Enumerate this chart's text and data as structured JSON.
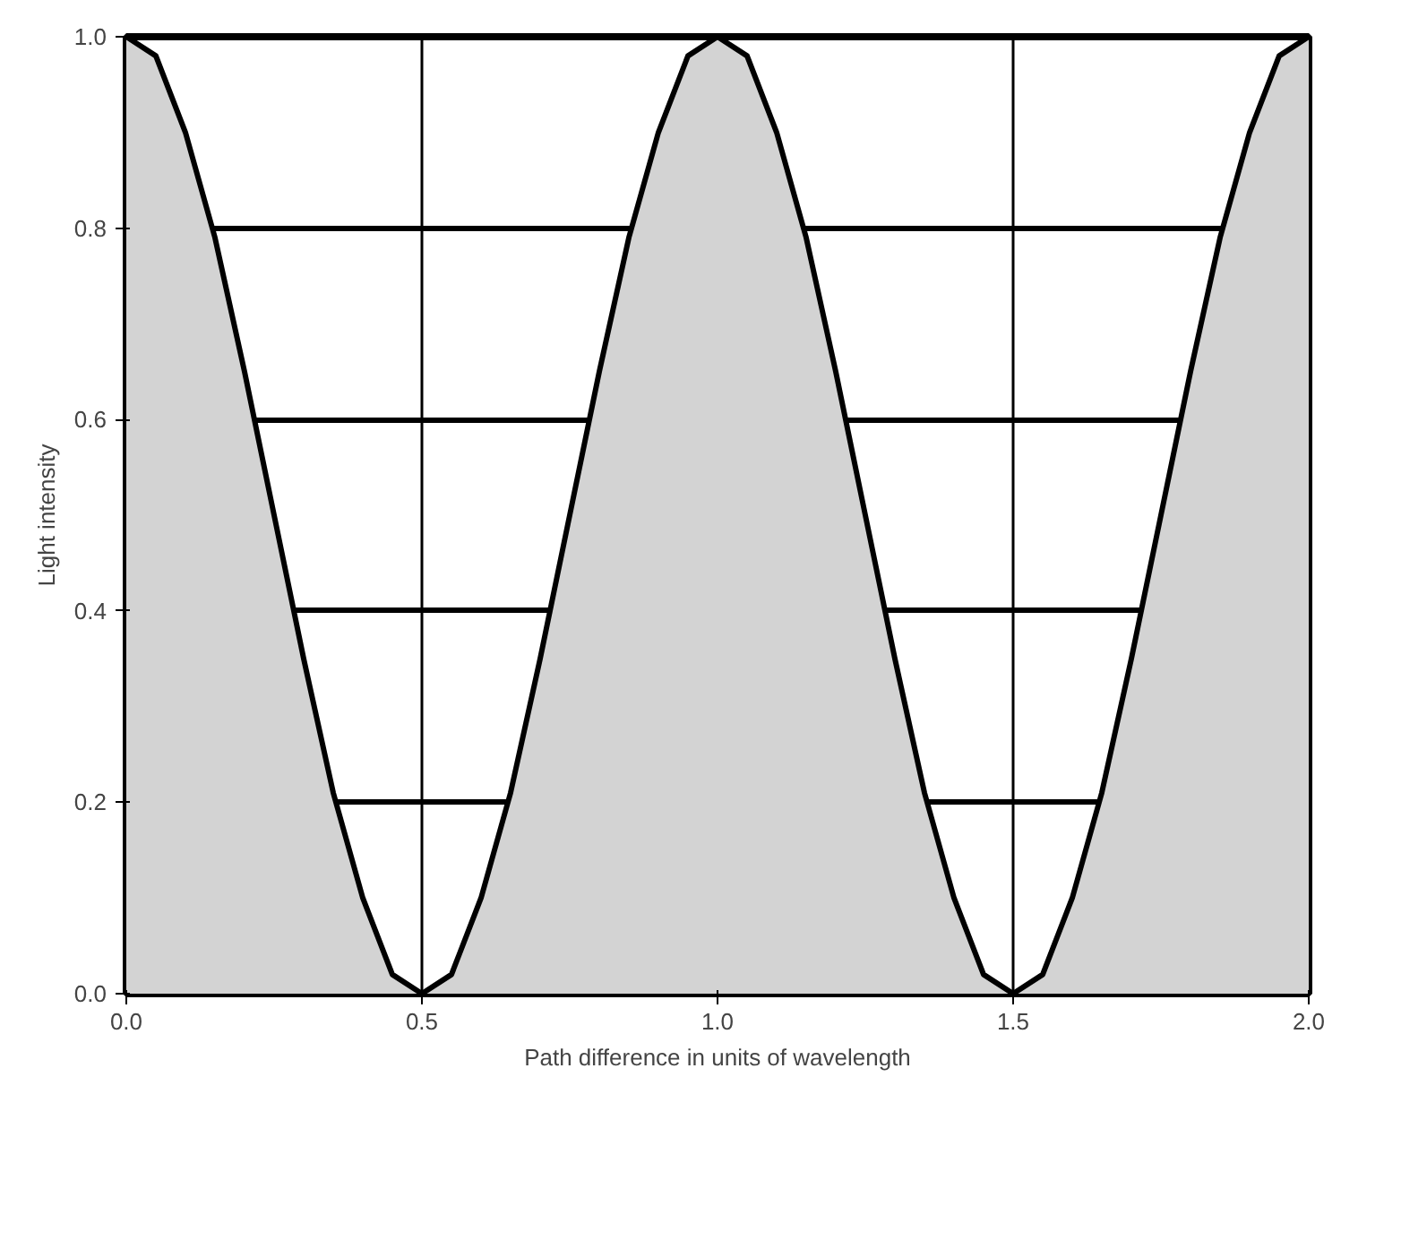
{
  "chart_data": {
    "type": "area",
    "xlabel": "Path difference in units of wavelength",
    "ylabel": "Light intensity",
    "x": [
      0,
      0.05,
      0.1,
      0.15,
      0.2,
      0.25,
      0.3,
      0.35,
      0.4,
      0.45,
      0.5,
      0.55,
      0.6,
      0.65,
      0.7,
      0.75,
      0.8,
      0.85,
      0.9,
      0.95,
      1.0,
      1.05,
      1.1,
      1.15,
      1.2,
      1.25,
      1.3,
      1.35,
      1.4,
      1.45,
      1.5,
      1.55,
      1.6,
      1.65,
      1.7,
      1.75,
      1.8,
      1.85,
      1.9,
      1.95,
      2.0
    ],
    "series": [
      {
        "color": "#d3d3d3",
        "values": [
          1,
          0.98,
          0.9,
          0.79,
          0.65,
          0.5,
          0.35,
          0.21,
          0.1,
          0.02,
          0,
          0.02,
          0.1,
          0.21,
          0.35,
          0.5,
          0.65,
          0.79,
          0.9,
          0.98,
          1,
          0.98,
          0.9,
          0.79,
          0.65,
          0.5,
          0.35,
          0.21,
          0.1,
          0.02,
          0,
          0.02,
          0.1,
          0.21,
          0.35,
          0.5,
          0.65,
          0.79,
          0.9,
          0.98,
          1
        ]
      }
    ],
    "xlim": [
      0,
      2
    ],
    "ylim": [
      0,
      1
    ],
    "xticks": [
      {
        "value": 0,
        "label": "0.0"
      },
      0.5,
      {
        "value": 1,
        "label": "1.0"
      },
      1.5,
      {
        "value": 2,
        "label": "2.0"
      }
    ],
    "yticks": [
      {
        "value": 0,
        "label": "0.0"
      },
      0.2,
      0.4,
      0.6,
      0.8,
      {
        "value": 1,
        "label": "1.0"
      }
    ],
    "grid": true
  }
}
